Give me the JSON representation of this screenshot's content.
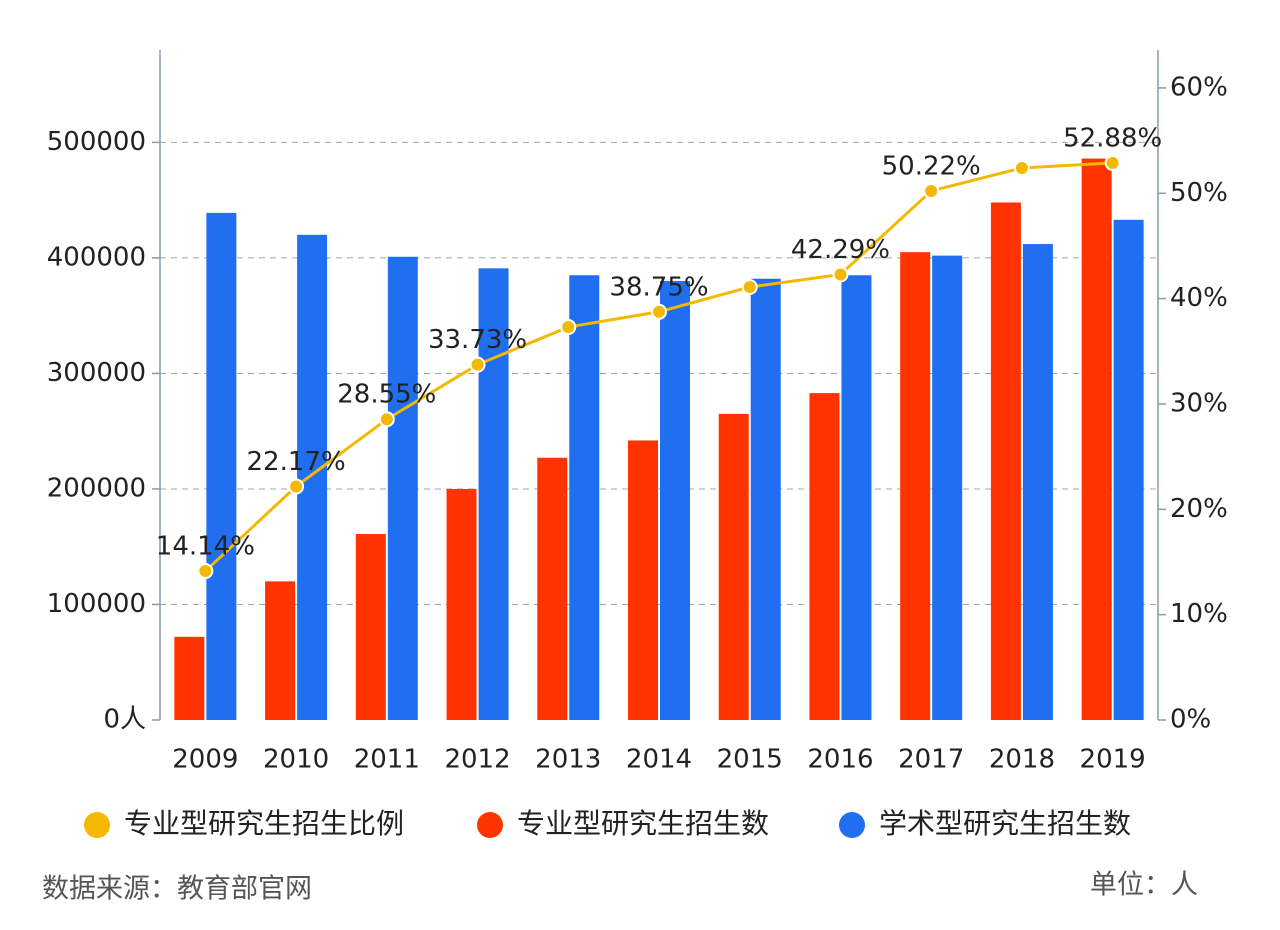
{
  "chart_data": {
    "type": "bar",
    "categories": [
      "2009",
      "2010",
      "2011",
      "2012",
      "2013",
      "2014",
      "2015",
      "2016",
      "2017",
      "2018",
      "2019"
    ],
    "series": [
      {
        "name": "专业型研究生招生比例",
        "type": "line",
        "axis": "y2",
        "color": "#f5b800",
        "values": [
          14.14,
          22.17,
          28.55,
          33.73,
          37.3,
          38.75,
          41.1,
          42.29,
          50.22,
          52.4,
          52.88
        ],
        "value_labels": [
          "14.14%",
          "22.17%",
          "28.55%",
          "33.73%",
          null,
          "38.75%",
          null,
          "42.29%",
          "50.22%",
          null,
          "52.88%"
        ]
      },
      {
        "name": "专业型研究生招生数",
        "type": "bar",
        "color": "#ff3300",
        "values": [
          72000,
          120000,
          161000,
          200000,
          227000,
          242000,
          265000,
          283000,
          405000,
          448000,
          486000
        ]
      },
      {
        "name": "学术型研究生招生数",
        "type": "bar",
        "color": "#1f6ff0",
        "values": [
          439000,
          420000,
          401000,
          391000,
          385000,
          380000,
          382000,
          385000,
          402000,
          412000,
          433000
        ]
      }
    ],
    "ylim": [
      0,
      580000
    ],
    "yticks": [
      {
        "value": 0,
        "label": "0人"
      },
      100000,
      200000,
      300000,
      400000,
      500000
    ],
    "y2lim": [
      0,
      63.6
    ],
    "y2ticks": [
      {
        "value": 0,
        "label": "0%"
      },
      {
        "value": 10,
        "label": "10%"
      },
      {
        "value": 20,
        "label": "20%"
      },
      {
        "value": 30,
        "label": "30%"
      },
      {
        "value": 40,
        "label": "40%"
      },
      {
        "value": 50,
        "label": "50%"
      },
      {
        "value": 60,
        "label": "60%"
      }
    ],
    "grid": true,
    "source": "数据来源：教育部官网",
    "unit_note": "单位：人"
  }
}
